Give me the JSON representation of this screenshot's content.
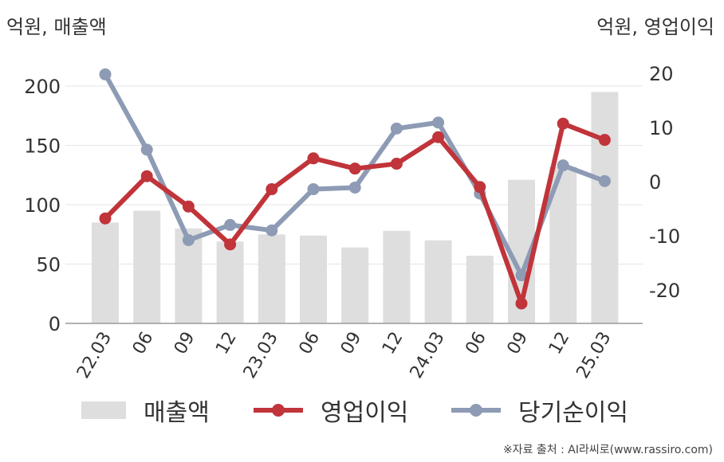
{
  "chart_data": {
    "type": "bar+line",
    "categories": [
      "22.03",
      "06",
      "09",
      "12",
      "23.03",
      "06",
      "09",
      "12",
      "24.03",
      "06",
      "09",
      "12",
      "25.03"
    ],
    "left_axis": {
      "unit_label": "억원, 매출액",
      "ylim": [
        0,
        200
      ],
      "ticks": [
        0,
        50,
        100,
        150,
        200
      ]
    },
    "right_axis": {
      "unit_label": "억원, 영업이익",
      "ylim": [
        -25,
        20
      ],
      "ticks": [
        -20,
        -10,
        0,
        10,
        20
      ]
    },
    "series": [
      {
        "name": "매출액",
        "type": "bar",
        "axis": "left",
        "values": [
          85,
          95,
          80,
          69,
          75,
          74,
          64,
          78,
          70,
          57,
          121,
          132,
          195
        ]
      },
      {
        "name": "영업이익",
        "type": "line",
        "axis": "right",
        "values": [
          -6.8,
          1.0,
          -4.6,
          -11.6,
          -1.4,
          4.3,
          2.4,
          3.3,
          8.2,
          -1.0,
          -22.5,
          10.7,
          7.7
        ]
      },
      {
        "name": "당기순이익",
        "type": "line",
        "axis": "right",
        "values": [
          19.8,
          5.9,
          -10.8,
          -8.0,
          -9.0,
          -1.4,
          -1.1,
          9.8,
          10.9,
          -2.2,
          -17.3,
          3.0,
          0.1
        ]
      }
    ],
    "colors": {
      "매출액": "#dedede",
      "영업이익": "#c0343a",
      "당기순이익": "#8e9bb5"
    },
    "grid": true,
    "legend_position": "bottom",
    "source": "※자료 출처 : AI라씨로(www.rassiro.com)"
  }
}
